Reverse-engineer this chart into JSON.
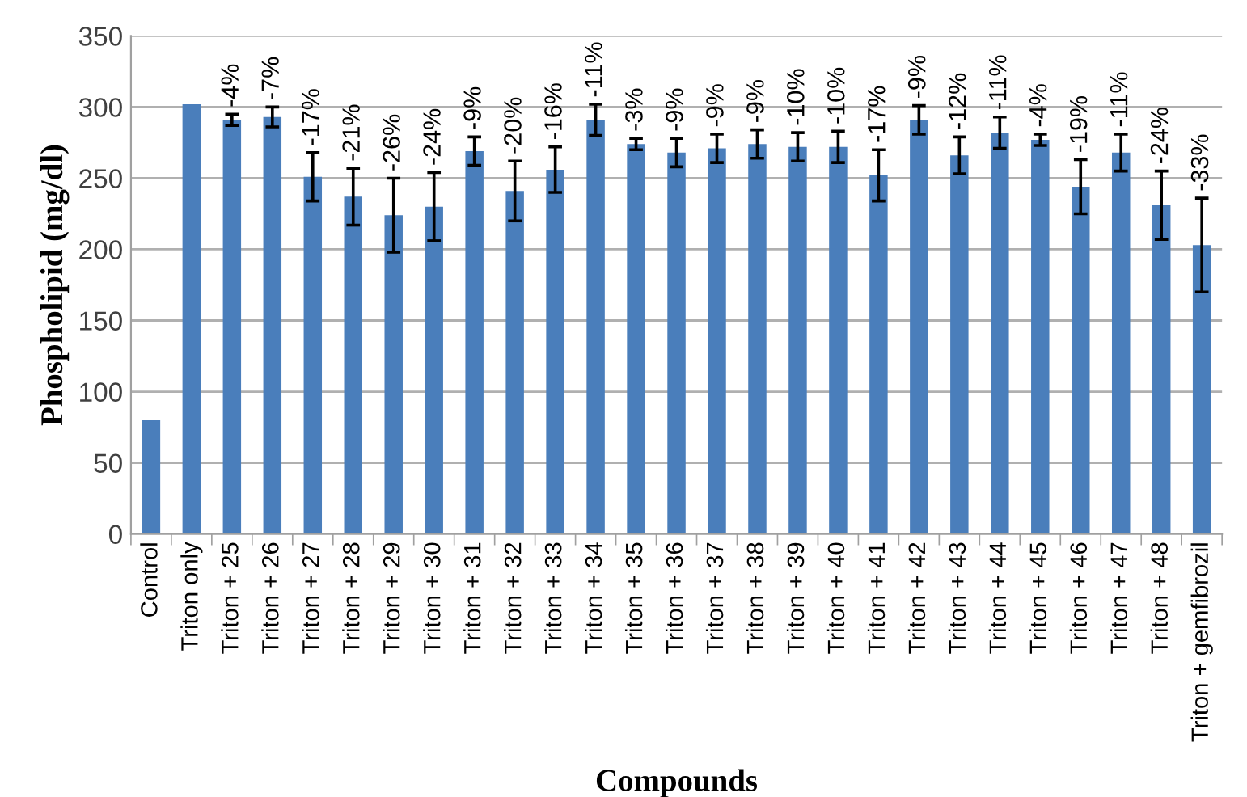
{
  "chart_data": {
    "type": "bar",
    "xlabel": "Compounds",
    "ylabel": "Phospholipid (mg/dl)",
    "categories": [
      "Control",
      "Triton only",
      "Triton + 25",
      "Triton + 26",
      "Triton + 27",
      "Triton + 28",
      "Triton + 29",
      "Triton + 30",
      "Triton + 31",
      "Triton + 32",
      "Triton + 33",
      "Triton + 34",
      "Triton + 35",
      "Triton + 36",
      "Triton + 37",
      "Triton + 38",
      "Triton + 39",
      "Triton + 40",
      "Triton + 41",
      "Triton + 42",
      "Triton + 43",
      "Triton + 44",
      "Triton + 45",
      "Triton + 46",
      "Triton + 47",
      "Triton + 48",
      "Triton + gemfibrozil"
    ],
    "values": [
      80,
      302,
      291,
      293,
      251,
      237,
      224,
      230,
      269,
      241,
      256,
      291,
      274,
      268,
      271,
      274,
      272,
      272,
      252,
      291,
      266,
      282,
      277,
      244,
      268,
      231,
      203
    ],
    "errors": [
      null,
      null,
      4,
      7,
      17,
      20,
      26,
      24,
      10,
      21,
      16,
      11,
      4,
      10,
      10,
      10,
      10,
      11,
      18,
      10,
      13,
      11,
      4,
      19,
      13,
      24,
      33
    ],
    "annotations": [
      {
        "text": "-4%",
        "x": "Triton + 25",
        "y": 291
      },
      {
        "text": "-7%",
        "x": "Triton + 26",
        "y": 293
      },
      {
        "text": "-17%",
        "x": "Triton + 27",
        "y": 251
      },
      {
        "text": "-21%",
        "x": "Triton + 28",
        "y": 237
      },
      {
        "text": "-26%",
        "x": "Triton + 29",
        "y": 224
      },
      {
        "text": "-24%",
        "x": "Triton + 30",
        "y": 230
      },
      {
        "text": "-9%",
        "x": "Triton + 31",
        "y": 269
      },
      {
        "text": "-20%",
        "x": "Triton + 32",
        "y": 241
      },
      {
        "text": "-16%",
        "x": "Triton + 33",
        "y": 256
      },
      {
        "text": "-11%",
        "x": "Triton + 34",
        "y": 291
      },
      {
        "text": "-3%",
        "x": "Triton + 35",
        "y": 274
      },
      {
        "text": "-9%",
        "x": "Triton + 36",
        "y": 268
      },
      {
        "text": "-9%",
        "x": "Triton + 37",
        "y": 271
      },
      {
        "text": "-9%",
        "x": "Triton + 38",
        "y": 274
      },
      {
        "text": "-10%",
        "x": "Triton + 39",
        "y": 272
      },
      {
        "text": "-10%",
        "x": "Triton + 40",
        "y": 272
      },
      {
        "text": "-17%",
        "x": "Triton + 41",
        "y": 252
      },
      {
        "text": "-9%",
        "x": "Triton + 42",
        "y": 291
      },
      {
        "text": "-12%",
        "x": "Triton + 43",
        "y": 266
      },
      {
        "text": "-11%",
        "x": "Triton + 44",
        "y": 282
      },
      {
        "text": "-4%",
        "x": "Triton + 45",
        "y": 277
      },
      {
        "text": "-19%",
        "x": "Triton + 46",
        "y": 244
      },
      {
        "text": "-11%",
        "x": "Triton + 47",
        "y": 268
      },
      {
        "text": "-24%",
        "x": "Triton + 48",
        "y": 231
      },
      {
        "text": "-33%",
        "x": "Triton + gemfibrozil",
        "y": 203
      }
    ],
    "color": "#4a7ebb",
    "ylim": [
      0,
      350
    ],
    "yticks": [
      0,
      50,
      100,
      150,
      200,
      250,
      300,
      350
    ],
    "grid": "y"
  }
}
